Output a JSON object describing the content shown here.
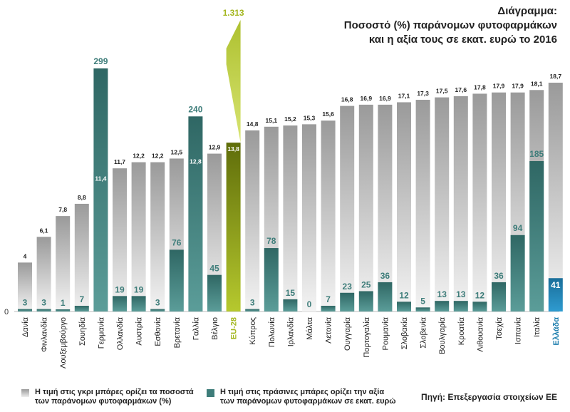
{
  "title": {
    "line1": "Διάγραμμα:",
    "line2": "Ποσοστό (%) παράνομων φυτοφαρμάκων",
    "line3": "και η αξία τους σε εκατ. ευρώ το 2016"
  },
  "chart_data": {
    "type": "bar",
    "zero_label": "0",
    "categories": [
      "Δανία",
      "Φινλανδία",
      "Λουξεμβούργο",
      "Σουηδία",
      "Γερμανία",
      "Ολλανδία",
      "Αυστρία",
      "Εσθονία",
      "Βρετανία",
      "Γαλλία",
      "Βέλγιο",
      "EU-28",
      "Κύπρος",
      "Πολωνία",
      "Ιρλανδία",
      "Μάλτα",
      "Λετονία",
      "Ουγγαρία",
      "Πορτογαλία",
      "Ρουμανία",
      "Σλοβακία",
      "Σλοβενία",
      "Βουλγαρία",
      "Κροατία",
      "Λιθουανία",
      "Τσεχία",
      "Ισπανία",
      "Ιταλία",
      "Ελλάδα"
    ],
    "series": [
      {
        "name": "Η τιμή στις γκρι μπάρες ορίζει τα ποσοστά των παράνομων φυτοφαρμάκων (%)",
        "labels": [
          "4",
          "6,1",
          "7,8",
          "8,8",
          "11,4",
          "11,7",
          "12,2",
          "12,2",
          "12,5",
          "12,8",
          "12,9",
          "13,8",
          "14,8",
          "15,1",
          "15,2",
          "15,3",
          "15,6",
          "16,8",
          "16,9",
          "16,9",
          "17,1",
          "17,3",
          "17,5",
          "17,6",
          "17,8",
          "17,9",
          "17,9",
          "18,1",
          "18,7"
        ],
        "values": [
          4,
          6.1,
          7.8,
          8.8,
          11.4,
          11.7,
          12.2,
          12.2,
          12.5,
          12.8,
          12.9,
          13.8,
          14.8,
          15.1,
          15.2,
          15.3,
          15.6,
          16.8,
          16.9,
          16.9,
          17.1,
          17.3,
          17.5,
          17.6,
          17.8,
          17.9,
          17.9,
          18.1,
          18.7
        ]
      },
      {
        "name": "Η τιμή στις πράσινες μπάρες ορίζει την αξία των παράνομων φυτοφαρμάκων σε εκατ. ευρώ",
        "labels": [
          "3",
          "3",
          "1",
          "7",
          "299",
          "19",
          "19",
          "3",
          "76",
          "240",
          "45",
          "1.313",
          "3",
          "78",
          "15",
          "0",
          "7",
          "23",
          "25",
          "36",
          "12",
          "5",
          "13",
          "13",
          "12",
          "36",
          "94",
          "185",
          "41"
        ],
        "values": [
          3,
          3,
          1,
          7,
          299,
          19,
          19,
          3,
          76,
          240,
          45,
          1313,
          3,
          78,
          15,
          0,
          7,
          23,
          25,
          36,
          12,
          5,
          13,
          13,
          12,
          36,
          94,
          185,
          41
        ]
      }
    ],
    "highlight": {
      "eu": "EU-28",
      "country": "Ελλάδα"
    },
    "colors": {
      "gray_top": "#9a9a9a",
      "gray_bottom": "#f2f2f2",
      "teal": "#4a8f8c",
      "teal_light": "#5fa3a0",
      "eu": "#a3b61e",
      "eu_light": "#c8d64a",
      "greece": "#2a8fc0",
      "greece_label": "#1f7fae",
      "dark_teal_label": "#3e7d7a"
    }
  },
  "legend": {
    "gray_line1": "Η τιμή στις γκρι μπάρες ορίζει τα ποσοστά",
    "gray_line2": "των παράνομων φυτοφαρμάκων (%)",
    "green_line1": "Η τιμή στις πράσινες μπάρες ορίζει την αξία",
    "green_line2": "των παράνομων φυτοφαρμάκων σε εκατ. ευρώ"
  },
  "source": "Πηγή: Επεξεργασία στοιχείων ΕΕ"
}
